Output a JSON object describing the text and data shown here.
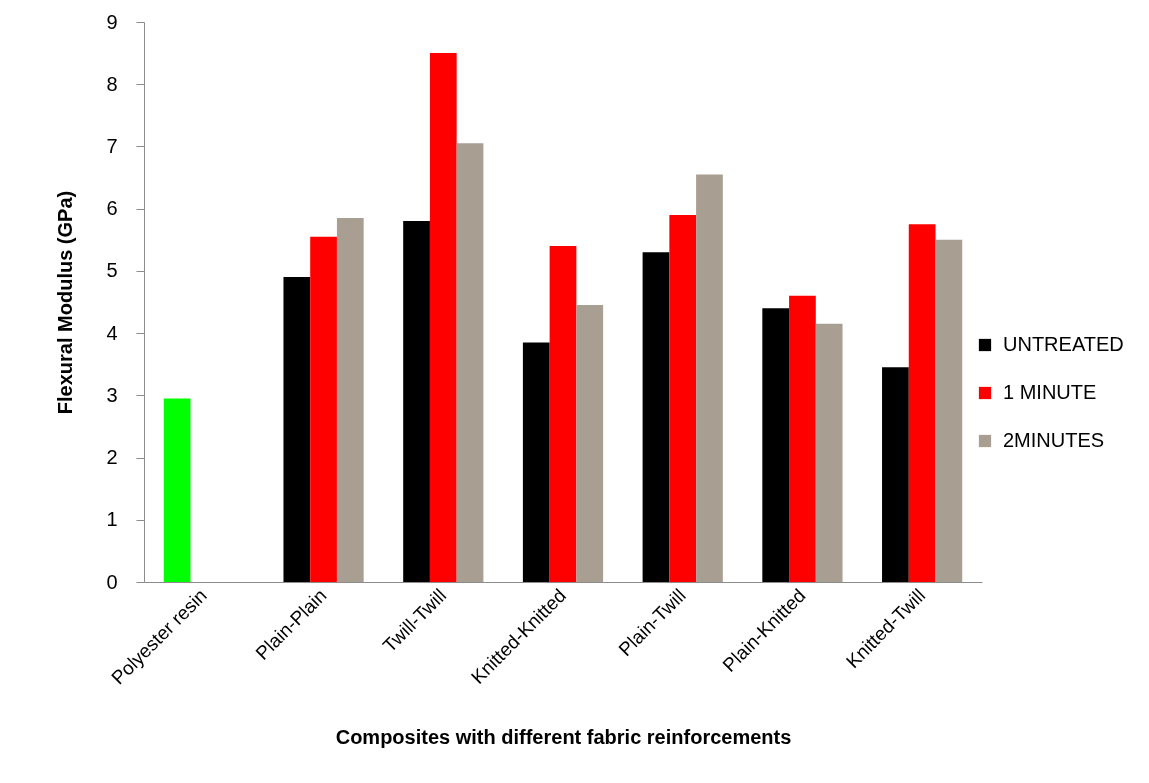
{
  "chart_data": {
    "type": "bar",
    "xlabel": "Composites with different fabric reinforcements",
    "ylabel": "Flexural Modulus (GPa)",
    "categories": [
      "Polyester resin",
      "Plain-Plain",
      "Twill-Twill",
      "Knitted-Knitted",
      "Plain-Twill",
      "Plain-Knitted",
      "Knitted-Twill"
    ],
    "series": [
      {
        "name": "UNTREATED",
        "color": "#000000",
        "colors": [
          "#00ff00",
          "#000000",
          "#000000",
          "#000000",
          "#000000",
          "#000000",
          "#000000"
        ],
        "values": [
          2.95,
          4.9,
          5.8,
          3.85,
          5.3,
          4.4,
          3.45
        ]
      },
      {
        "name": "1 MINUTE",
        "color": "#ff0000",
        "values": [
          null,
          5.55,
          8.5,
          5.4,
          5.9,
          4.6,
          5.75
        ]
      },
      {
        "name": "2MINUTES",
        "color": "#a99e92",
        "values": [
          null,
          5.85,
          7.05,
          4.45,
          6.55,
          4.15,
          5.5
        ]
      }
    ],
    "ylim": [
      0,
      9
    ],
    "yticks": [
      0,
      1,
      2,
      3,
      4,
      5,
      6,
      7,
      8,
      9
    ],
    "legend": "right"
  }
}
